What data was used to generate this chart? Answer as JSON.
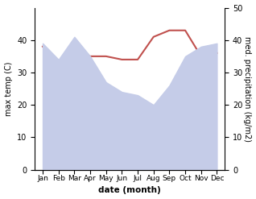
{
  "months": [
    "Jan",
    "Feb",
    "Mar",
    "Apr",
    "May",
    "Jun",
    "Jul",
    "Aug",
    "Sep",
    "Oct",
    "Nov",
    "Dec"
  ],
  "month_x": [
    0,
    1,
    2,
    3,
    4,
    5,
    6,
    7,
    8,
    9,
    10,
    11
  ],
  "precipitation": [
    390,
    340,
    410,
    350,
    270,
    240,
    230,
    200,
    260,
    350,
    380,
    390
  ],
  "temperature": [
    38,
    33,
    37,
    35,
    35,
    34,
    34,
    41,
    43,
    43,
    35,
    36
  ],
  "temp_color": "#c0504d",
  "precip_fill_color": "#c5cce8",
  "left_ylabel": "max temp (C)",
  "right_ylabel": "med. precipitation (kg/m2)",
  "xlabel": "date (month)",
  "ylim_left": [
    0,
    50
  ],
  "ylim_right": [
    0,
    500
  ],
  "left_yticks": [
    0,
    10,
    20,
    30,
    40
  ],
  "right_yticks": [
    0,
    100,
    200,
    300,
    400,
    500
  ],
  "right_yticklabels": [
    "0",
    "10",
    "20",
    "30",
    "40",
    "50"
  ],
  "bg_color": "#ffffff",
  "temp_linewidth": 1.5
}
